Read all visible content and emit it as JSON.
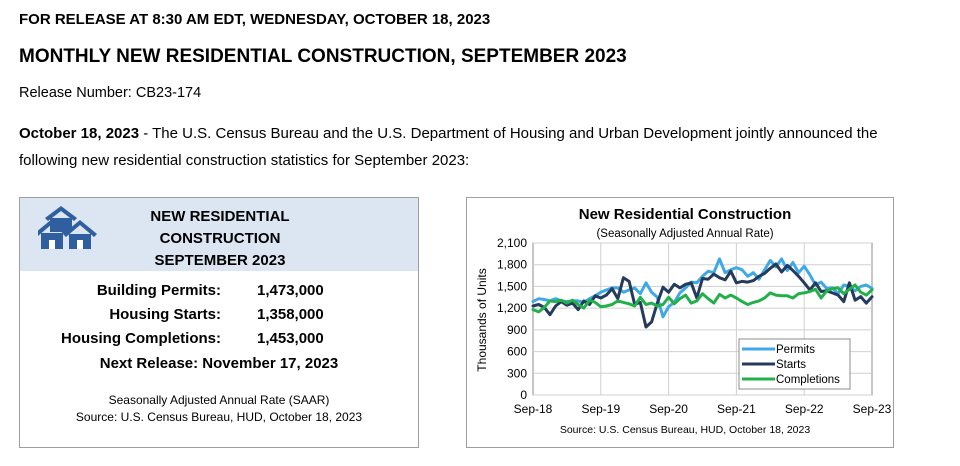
{
  "header": {
    "release_line": "FOR RELEASE AT 8:30 AM EDT, WEDNESDAY, OCTOBER 18, 2023",
    "title": "MONTHLY NEW RESIDENTIAL CONSTRUCTION, SEPTEMBER 2023",
    "release_number": "Release Number: CB23-174"
  },
  "intro": {
    "date": "October 18, 2023",
    "text": " - The U.S. Census Bureau and the U.S. Department of Housing and Urban Development jointly announced the following new residential construction statistics for September 2023:"
  },
  "summary": {
    "title_lines": [
      "NEW RESIDENTIAL",
      "CONSTRUCTION",
      "SEPTEMBER 2023"
    ],
    "stats": [
      {
        "label": "Building Permits:",
        "value": "1,473,000"
      },
      {
        "label": "Housing Starts:",
        "value": "1,358,000"
      },
      {
        "label": "Housing Completions:",
        "value": "1,453,000"
      }
    ],
    "next_release": "Next Release:  November 17, 2023",
    "footnote1": "Seasonally Adjusted Annual Rate (SAAR)",
    "footnote2": "Source:  U.S. Census Bureau, HUD, October 18, 2023"
  },
  "colors": {
    "permits": "#3fa9e6",
    "starts": "#243b5e",
    "completions": "#23b04a",
    "summary_header_bg": "#dce6f2",
    "house_icon": "#2f5f9e"
  },
  "chart_data": {
    "type": "line",
    "title": "New Residential Construction",
    "subtitle": "(Seasonally Adjusted Annual Rate)",
    "ylabel": "Thousands of Units",
    "xlabel": "",
    "ylim": [
      0,
      2100
    ],
    "yticks": [
      0,
      300,
      600,
      900,
      1200,
      1500,
      1800,
      2100
    ],
    "ytick_labels": [
      "0",
      "300",
      "600",
      "900",
      "1,200",
      "1,500",
      "1,800",
      "2,100"
    ],
    "xtick_labels": [
      "Sep-18",
      "Sep-19",
      "Sep-20",
      "Sep-21",
      "Sep-22",
      "Sep-23"
    ],
    "xtick_positions": [
      0,
      12,
      24,
      36,
      48,
      60
    ],
    "source": "Source: U.S. Census Bureau, HUD, October 18, 2023",
    "legend_position": "bottom-right",
    "series": [
      {
        "name": "Permits",
        "color": "#3fa9e6",
        "values": [
          1290,
          1330,
          1320,
          1300,
          1330,
          1300,
          1290,
          1300,
          1300,
          1280,
          1330,
          1370,
          1420,
          1450,
          1480,
          1480,
          1420,
          1450,
          1480,
          1400,
          1550,
          1420,
          1350,
          1080,
          1220,
          1280,
          1410,
          1480,
          1560,
          1550,
          1640,
          1710,
          1690,
          1880,
          1690,
          1730,
          1760,
          1730,
          1640,
          1690,
          1600,
          1730,
          1860,
          1770,
          1880,
          1720,
          1830,
          1690,
          1780,
          1660,
          1520,
          1560,
          1470,
          1480,
          1400,
          1520,
          1500,
          1440,
          1500,
          1520,
          1473
        ]
      },
      {
        "name": "Starts",
        "color": "#243b5e",
        "values": [
          1230,
          1250,
          1210,
          1110,
          1230,
          1290,
          1240,
          1270,
          1180,
          1300,
          1250,
          1370,
          1340,
          1380,
          1470,
          1330,
          1620,
          1570,
          1250,
          1280,
          940,
          1010,
          1270,
          1490,
          1420,
          1530,
          1480,
          1530,
          1550,
          1340,
          1610,
          1600,
          1670,
          1620,
          1590,
          1710,
          1550,
          1570,
          1560,
          1580,
          1640,
          1680,
          1750,
          1810,
          1700,
          1790,
          1720,
          1640,
          1550,
          1450,
          1550,
          1430,
          1440,
          1410,
          1380,
          1290,
          1550,
          1310,
          1360,
          1270,
          1358
        ]
      },
      {
        "name": "Completions",
        "color": "#23b04a",
        "values": [
          1180,
          1150,
          1210,
          1300,
          1290,
          1310,
          1270,
          1310,
          1250,
          1200,
          1310,
          1280,
          1220,
          1230,
          1250,
          1300,
          1280,
          1260,
          1230,
          1350,
          1250,
          1270,
          1230,
          1250,
          1350,
          1260,
          1330,
          1380,
          1270,
          1300,
          1400,
          1330,
          1270,
          1390,
          1340,
          1380,
          1340,
          1290,
          1250,
          1280,
          1300,
          1340,
          1410,
          1380,
          1370,
          1370,
          1340,
          1400,
          1410,
          1430,
          1460,
          1340,
          1440,
          1470,
          1480,
          1400,
          1460,
          1520,
          1420,
          1380,
          1453
        ]
      }
    ]
  }
}
